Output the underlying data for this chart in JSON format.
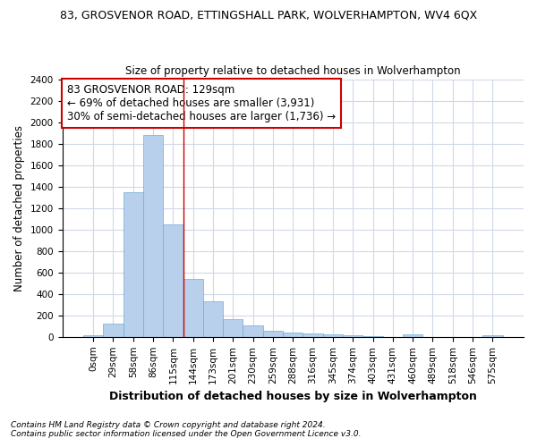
{
  "title_line1": "83, GROSVENOR ROAD, ETTINGSHALL PARK, WOLVERHAMPTON, WV4 6QX",
  "title_line2": "Size of property relative to detached houses in Wolverhampton",
  "xlabel": "Distribution of detached houses by size in Wolverhampton",
  "ylabel": "Number of detached properties",
  "footnote1": "Contains HM Land Registry data © Crown copyright and database right 2024.",
  "footnote2": "Contains public sector information licensed under the Open Government Licence v3.0.",
  "annotation_line1": "83 GROSVENOR ROAD: 129sqm",
  "annotation_line2": "← 69% of detached houses are smaller (3,931)",
  "annotation_line3": "30% of semi-detached houses are larger (1,736) →",
  "bar_color": "#b8d0eb",
  "bar_edge_color": "#6aaed6",
  "vline_color": "#cc0000",
  "annotation_box_edge": "#cc0000",
  "background_color": "#ffffff",
  "plot_bg_color": "#ffffff",
  "grid_color": "#d0d8e8",
  "categories": [
    "0sqm",
    "29sqm",
    "58sqm",
    "86sqm",
    "115sqm",
    "144sqm",
    "173sqm",
    "201sqm",
    "230sqm",
    "259sqm",
    "288sqm",
    "316sqm",
    "345sqm",
    "374sqm",
    "403sqm",
    "431sqm",
    "460sqm",
    "489sqm",
    "518sqm",
    "546sqm",
    "575sqm"
  ],
  "values": [
    15,
    125,
    1350,
    1880,
    1045,
    540,
    335,
    165,
    110,
    60,
    38,
    28,
    25,
    18,
    10,
    0,
    20,
    0,
    0,
    0,
    15
  ],
  "ylim": [
    0,
    2400
  ],
  "yticks": [
    0,
    200,
    400,
    600,
    800,
    1000,
    1200,
    1400,
    1600,
    1800,
    2000,
    2200,
    2400
  ],
  "vline_x_index": 4.5,
  "title1_fontsize": 9,
  "title2_fontsize": 8.5,
  "ylabel_fontsize": 8.5,
  "xlabel_fontsize": 9,
  "tick_fontsize": 7.5,
  "annotation_fontsize": 8.5,
  "footnote_fontsize": 6.5
}
